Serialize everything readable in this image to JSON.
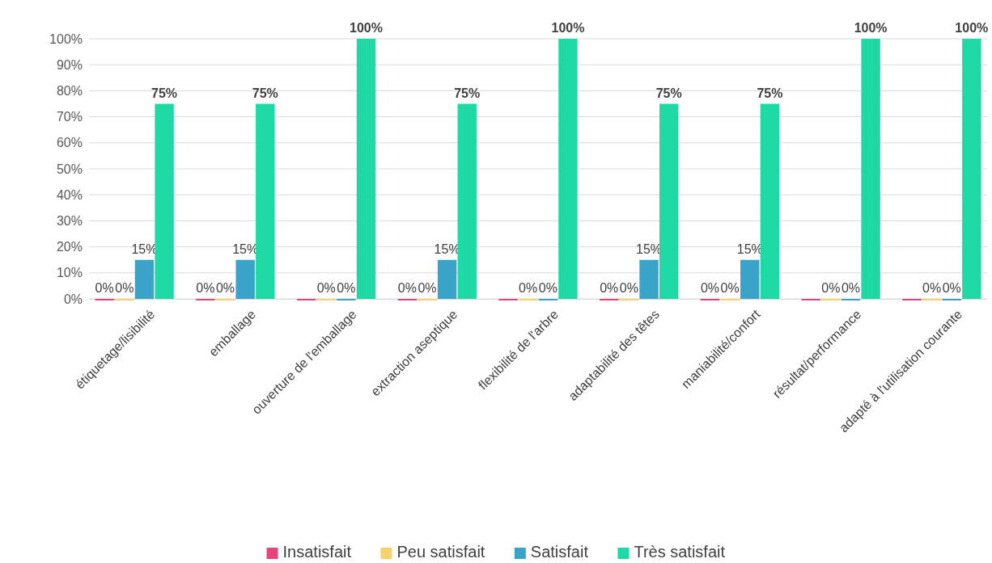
{
  "chart_data": {
    "type": "bar",
    "categories": [
      "étiquetage/lisibilité",
      "emballage",
      "ouverture de l'emballage",
      "extraction aseptique",
      "flexibilité de l'arbre",
      "adaptabilité des têtes",
      "maniabilité/confort",
      "résultat/performance",
      "adapté à l'utilisation courante"
    ],
    "series": [
      {
        "name": "Insatisfait",
        "color": "#e6457a",
        "values": [
          0,
          0,
          0,
          0,
          0,
          0,
          0,
          0,
          0
        ],
        "value_labels": [
          "0%",
          "0%",
          null,
          "0%",
          null,
          "0%",
          "0%",
          null,
          null
        ]
      },
      {
        "name": "Peu satisfait",
        "color": "#f5d26b",
        "values": [
          0,
          0,
          0,
          0,
          0,
          0,
          0,
          0,
          0
        ],
        "value_labels": [
          "0%",
          "0%",
          "0%",
          "0%",
          "0%",
          "0%",
          "0%",
          "0%",
          "0%"
        ]
      },
      {
        "name": "Satisfait",
        "color": "#3aa3c8",
        "values": [
          15,
          15,
          0,
          15,
          0,
          15,
          15,
          0,
          0
        ],
        "value_labels": [
          "15%",
          "15%",
          "0%",
          "15%",
          "0%",
          "15%",
          "15%",
          "0%",
          "0%"
        ]
      },
      {
        "name": "Très satisfait",
        "color": "#1ed9a4",
        "values": [
          75,
          75,
          100,
          75,
          100,
          75,
          75,
          100,
          100
        ],
        "value_labels": [
          "75%",
          "75%",
          "100%",
          "75%",
          "100%",
          "75%",
          "75%",
          "100%",
          "100%"
        ]
      }
    ],
    "ylim": [
      0,
      100
    ],
    "yticks": [
      {
        "value": 0,
        "label": "0%"
      },
      {
        "value": 10,
        "label": "10%"
      },
      {
        "value": 20,
        "label": "20%"
      },
      {
        "value": 30,
        "label": "30%"
      },
      {
        "value": 40,
        "label": "40%"
      },
      {
        "value": 50,
        "label": "50%"
      },
      {
        "value": 60,
        "label": "60%"
      },
      {
        "value": 70,
        "label": "70%"
      },
      {
        "value": 80,
        "label": "80%"
      },
      {
        "value": 90,
        "label": "90%"
      },
      {
        "value": 100,
        "label": "100%"
      }
    ],
    "grid": "y",
    "legend": "bottom"
  }
}
